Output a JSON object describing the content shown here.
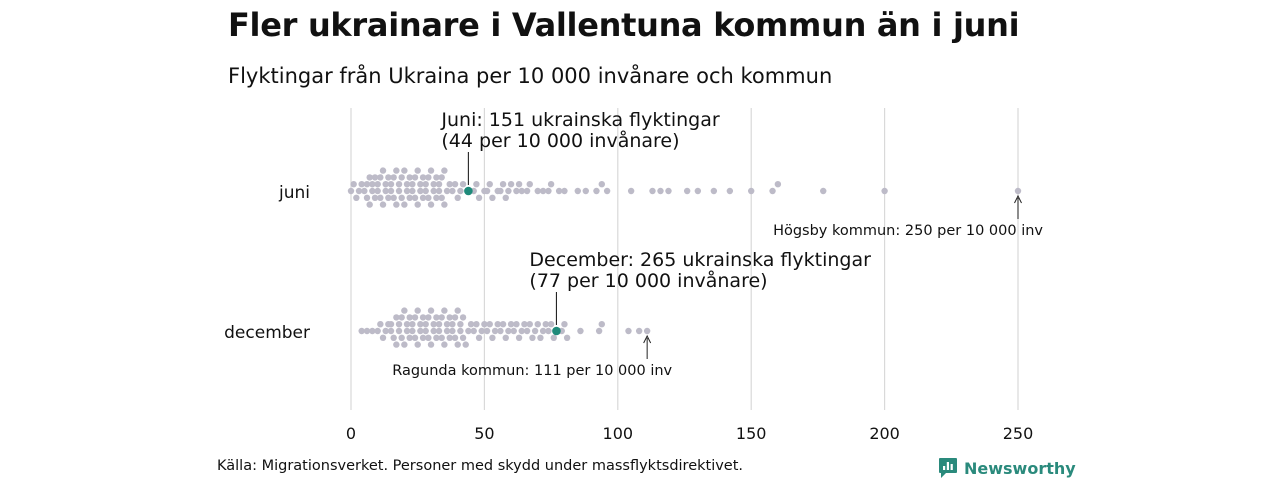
{
  "title": "Fler ukrainare i Vallentuna kommun än i juni",
  "subtitle": "Flyktingar från Ukraina per 10 000 invånare och kommun",
  "source": "Källa: Migrationsverket. Personer med skydd under massflyktsdirektivet.",
  "brand": "Newsworthy",
  "colors": {
    "dot": "#bdbbc8",
    "highlight": "#1f8a7a",
    "grid": "#d9d9d9",
    "brand": "#2a8a7c"
  },
  "chart_data": {
    "type": "scatter",
    "chart_style": "beeswarm",
    "x_ticks": [
      0,
      50,
      100,
      150,
      200,
      250
    ],
    "xlim": [
      0,
      250
    ],
    "categories": [
      "juni",
      "december"
    ],
    "series": [
      {
        "name": "juni",
        "values": [
          0,
          1,
          2,
          3,
          4,
          5,
          6,
          6,
          7,
          7,
          8,
          8,
          9,
          9,
          10,
          10,
          11,
          11,
          12,
          12,
          13,
          13,
          14,
          14,
          15,
          15,
          16,
          16,
          17,
          17,
          18,
          18,
          19,
          19,
          20,
          20,
          21,
          21,
          22,
          22,
          23,
          23,
          24,
          24,
          25,
          25,
          26,
          26,
          27,
          27,
          28,
          28,
          29,
          29,
          30,
          30,
          31,
          31,
          32,
          32,
          33,
          33,
          34,
          34,
          35,
          35,
          36,
          37,
          38,
          39,
          40,
          41,
          42,
          44,
          46,
          47,
          48,
          50,
          51,
          52,
          53,
          55,
          56,
          57,
          58,
          59,
          60,
          62,
          63,
          64,
          66,
          67,
          70,
          72,
          74,
          75,
          78,
          80,
          85,
          88,
          92,
          94,
          96,
          105,
          113,
          116,
          119,
          126,
          130,
          136,
          142,
          150,
          158,
          160,
          177,
          200,
          250
        ],
        "highlight": {
          "value": 44,
          "label_line1": "Juni: 151 ukrainska flyktingar",
          "label_line2": "(44 per 10 000 invånare)"
        },
        "max_annotation": {
          "value": 250,
          "label": "Högsby kommun: 250 per 10 000 inv"
        }
      },
      {
        "name": "december",
        "values": [
          4,
          6,
          8,
          10,
          11,
          12,
          13,
          14,
          15,
          15,
          16,
          17,
          17,
          18,
          18,
          19,
          19,
          20,
          20,
          21,
          21,
          22,
          22,
          23,
          23,
          24,
          24,
          25,
          25,
          26,
          26,
          27,
          27,
          28,
          28,
          29,
          29,
          30,
          30,
          31,
          31,
          32,
          32,
          33,
          33,
          34,
          34,
          35,
          35,
          36,
          36,
          37,
          37,
          38,
          38,
          39,
          39,
          40,
          40,
          41,
          41,
          42,
          42,
          43,
          44,
          45,
          46,
          47,
          48,
          49,
          50,
          51,
          52,
          53,
          54,
          55,
          56,
          57,
          58,
          59,
          60,
          61,
          62,
          63,
          64,
          65,
          66,
          67,
          68,
          69,
          70,
          71,
          72,
          73,
          74,
          75,
          76,
          78,
          79,
          80,
          81,
          86,
          93,
          94,
          104,
          108,
          111
        ],
        "highlight": {
          "value": 77,
          "label_line1": "December: 265 ukrainska flyktingar",
          "label_line2": "(77 per 10 000 invånare)"
        },
        "max_annotation": {
          "value": 111,
          "label": "Ragunda kommun: 111 per 10 000 inv"
        }
      }
    ]
  }
}
